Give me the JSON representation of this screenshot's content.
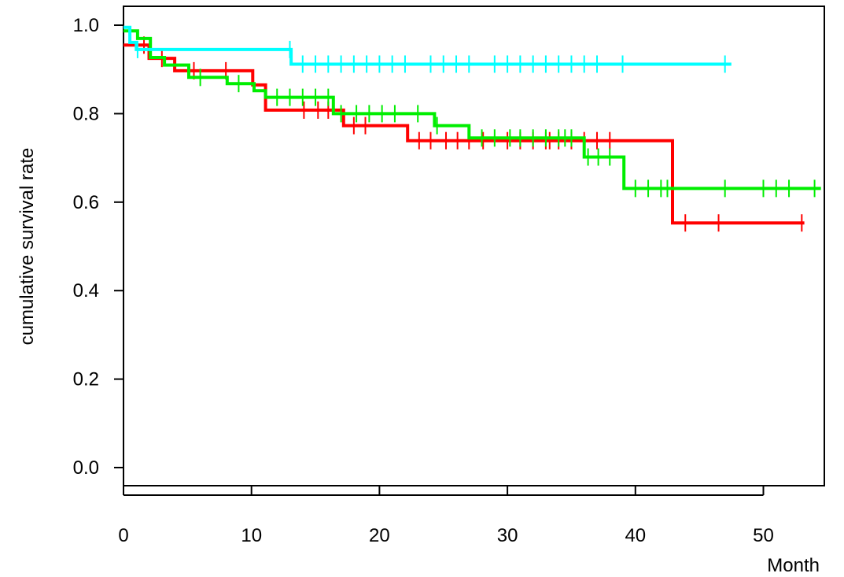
{
  "chart_data": {
    "type": "line",
    "subtype": "kaplan-meier step survival curves",
    "title": "",
    "xlabel": "Month",
    "ylabel": "cumulative survival rate",
    "xlim": [
      0,
      55
    ],
    "ylim": [
      0,
      1.05
    ],
    "x_ticks": [
      0,
      10,
      20,
      30,
      40,
      50
    ],
    "x_tick_labels": [
      "0",
      "10",
      "20",
      "30",
      "40",
      "50"
    ],
    "y_ticks": [
      0.0,
      0.2,
      0.4,
      0.6,
      0.8,
      1.0
    ],
    "y_tick_labels": [
      "0.0",
      "0.2",
      "0.4",
      "0.6",
      "0.8",
      "1.0"
    ],
    "grid": false,
    "legend": "none",
    "series": [
      {
        "color": "#ff0000",
        "steps": [
          [
            0,
            0.955
          ],
          [
            2,
            0.925
          ],
          [
            4,
            0.897
          ],
          [
            10.1,
            0.865
          ],
          [
            11.1,
            0.808
          ],
          [
            17.2,
            0.773
          ],
          [
            22.2,
            0.739
          ],
          [
            42.9,
            0.553
          ],
          [
            53.2,
            0.553
          ]
        ],
        "censor_times": [
          1.6,
          3.0,
          5.5,
          8.0,
          14.1,
          15.2,
          16.0,
          18.0,
          18.9,
          23.1,
          24.0,
          25.2,
          26.1,
          27.0,
          28.1,
          30.0,
          31.0,
          32.0,
          33.0,
          33.3,
          34.0,
          35.0,
          36.0,
          37.0,
          38.0,
          43.9,
          46.5,
          53.0
        ]
      },
      {
        "color": "#00ee00",
        "steps": [
          [
            0,
            0.987
          ],
          [
            1.1,
            0.97
          ],
          [
            2.1,
            0.927
          ],
          [
            3.2,
            0.91
          ],
          [
            5.1,
            0.882
          ],
          [
            8.1,
            0.868
          ],
          [
            10.2,
            0.852
          ],
          [
            11.1,
            0.837
          ],
          [
            16.4,
            0.8
          ],
          [
            24.3,
            0.773
          ],
          [
            27.0,
            0.745
          ],
          [
            36.0,
            0.702
          ],
          [
            39.1,
            0.631
          ],
          [
            54.5,
            0.631
          ]
        ],
        "censor_times": [
          6.0,
          9.0,
          12.0,
          13.0,
          14.0,
          15.0,
          16.0,
          17.0,
          18.2,
          19.2,
          20.2,
          21.2,
          23.0,
          24.5,
          28.0,
          29.0,
          30.2,
          31.0,
          32.0,
          33.0,
          34.0,
          34.5,
          35.0,
          36.3,
          37.1,
          38.0,
          40.0,
          41.0,
          42.0,
          42.5,
          47.0,
          50.0,
          51.0,
          52.0,
          54.0
        ]
      },
      {
        "color": "#00ffff",
        "steps": [
          [
            0,
            0.995
          ],
          [
            0.5,
            0.961
          ],
          [
            1.0,
            0.945
          ],
          [
            13.1,
            0.912
          ],
          [
            47.5,
            0.912
          ]
        ],
        "censor_times": [
          1.1,
          13.0,
          14.0,
          15.0,
          16.0,
          17.0,
          18.0,
          19.0,
          20.0,
          21.0,
          22.0,
          24.0,
          25.0,
          26.0,
          27.0,
          29.0,
          30.0,
          31.0,
          32.0,
          33.0,
          34.0,
          35.0,
          36.0,
          37.0,
          39.0,
          47.0
        ]
      }
    ]
  }
}
